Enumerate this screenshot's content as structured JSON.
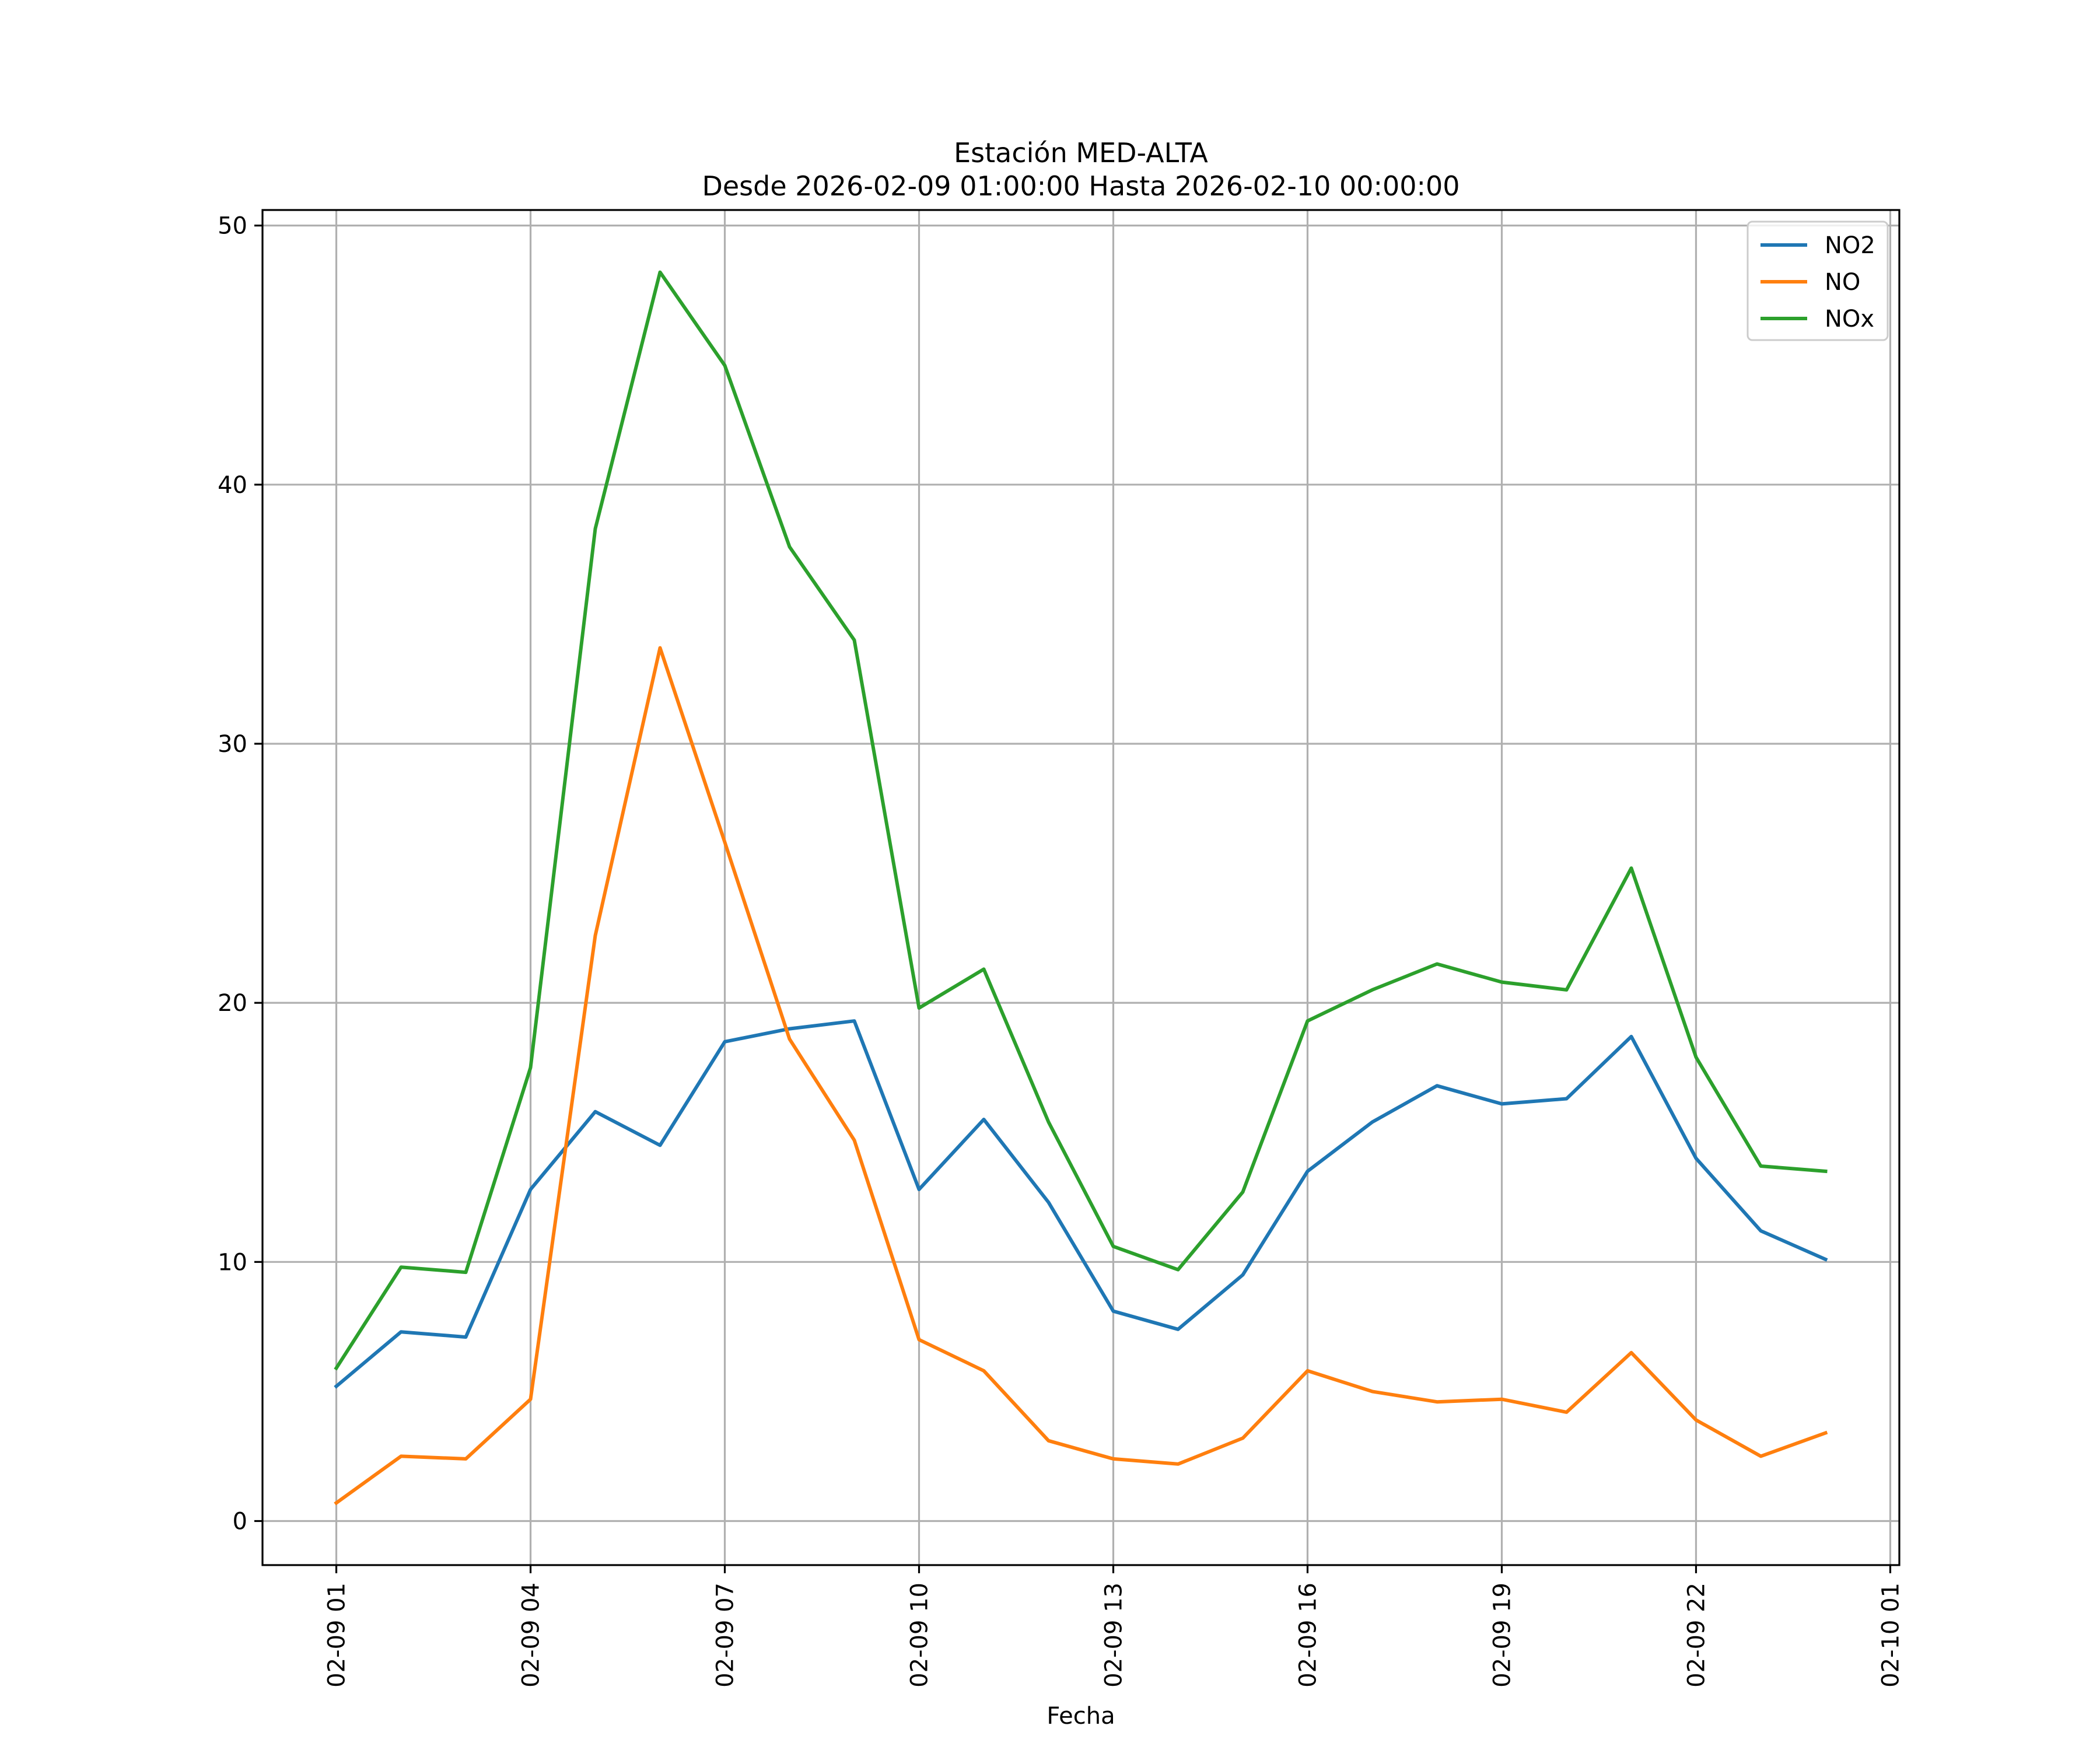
{
  "chart_data": {
    "type": "line",
    "title": [
      "Estación MED-ALTA",
      "Desde 2026-02-09 01:00:00 Hasta 2026-02-10 00:00:00"
    ],
    "xlabel": "Fecha",
    "ylabel": "",
    "x": [
      "02-09 01",
      "02-09 02",
      "02-09 03",
      "02-09 04",
      "02-09 05",
      "02-09 06",
      "02-09 07",
      "02-09 08",
      "02-09 09",
      "02-09 10",
      "02-09 11",
      "02-09 12",
      "02-09 13",
      "02-09 14",
      "02-09 15",
      "02-09 16",
      "02-09 17",
      "02-09 18",
      "02-09 19",
      "02-09 20",
      "02-09 21",
      "02-09 22",
      "02-09 23",
      "02-10 00"
    ],
    "x_hours": [
      1,
      2,
      3,
      4,
      5,
      6,
      7,
      8,
      9,
      10,
      11,
      12,
      13,
      14,
      15,
      16,
      17,
      18,
      19,
      20,
      21,
      22,
      23,
      24
    ],
    "xticks": {
      "hours": [
        1,
        4,
        7,
        10,
        13,
        16,
        19,
        22,
        25
      ],
      "labels": [
        "02-09 01",
        "02-09 04",
        "02-09 07",
        "02-09 10",
        "02-09 13",
        "02-09 16",
        "02-09 19",
        "02-09 22",
        "02-10 01"
      ]
    },
    "xlim_hours": [
      -0.14,
      25.14
    ],
    "ylim": [
      -1.7,
      50.6
    ],
    "yticks": [
      0,
      10,
      20,
      30,
      40,
      50
    ],
    "ytick_labels": [
      "0",
      "10",
      "20",
      "30",
      "40",
      "50"
    ],
    "grid": true,
    "legend_position": "top-right",
    "series": [
      {
        "name": "NO2",
        "color": "#1f77b4",
        "values": [
          5.2,
          7.3,
          7.1,
          12.8,
          15.8,
          14.5,
          18.5,
          19.0,
          19.3,
          12.8,
          15.5,
          12.3,
          8.1,
          7.4,
          9.5,
          13.5,
          15.4,
          16.8,
          16.1,
          16.3,
          18.7,
          14.0,
          11.2,
          10.1
        ]
      },
      {
        "name": "NO",
        "color": "#ff7f0e",
        "values": [
          0.7,
          2.5,
          2.4,
          4.7,
          22.6,
          33.7,
          26.2,
          18.6,
          14.7,
          7.0,
          5.8,
          3.1,
          2.4,
          2.2,
          3.2,
          5.8,
          5.0,
          4.6,
          4.7,
          4.2,
          6.5,
          3.9,
          2.5,
          3.4
        ]
      },
      {
        "name": "NOx",
        "color": "#2ca02c",
        "values": [
          5.9,
          9.8,
          9.6,
          17.5,
          38.3,
          48.2,
          44.6,
          37.6,
          34.0,
          19.8,
          21.3,
          15.4,
          10.6,
          9.7,
          12.7,
          19.3,
          20.5,
          21.5,
          20.8,
          20.5,
          25.2,
          17.9,
          13.7,
          13.5
        ]
      }
    ]
  }
}
